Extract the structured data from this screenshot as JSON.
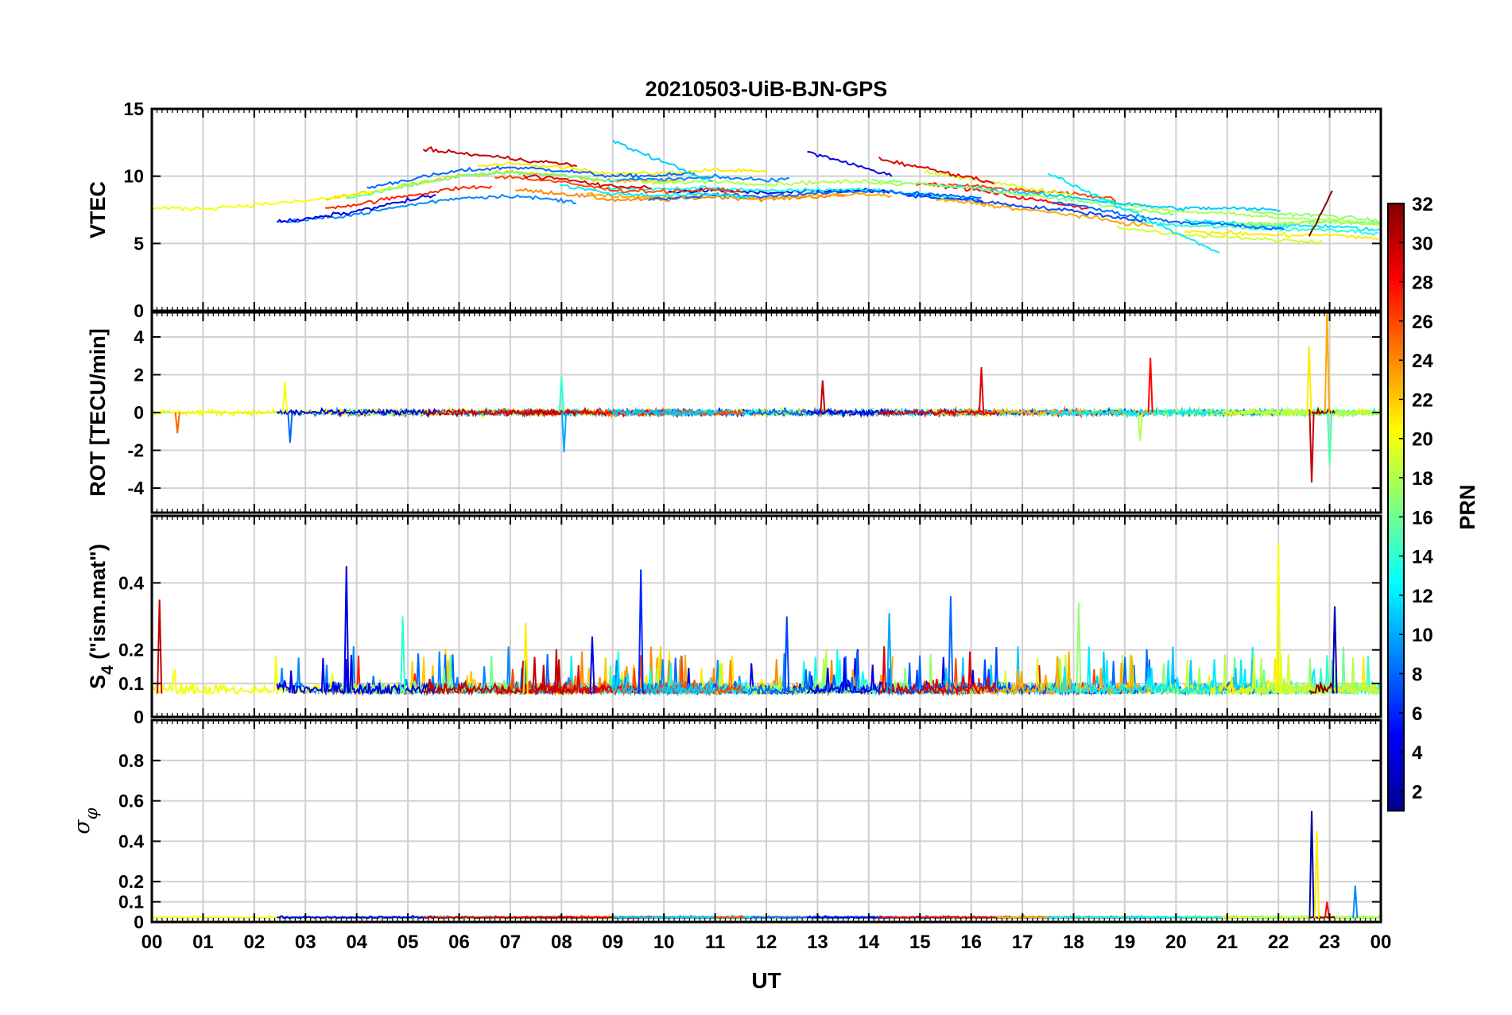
{
  "title": "20210503-UiB-BJN-GPS",
  "chart_data": [
    {
      "type": "line",
      "panel": "vtec",
      "ylabel": "VTEC",
      "ylim": [
        0,
        15
      ],
      "yticks": [
        0,
        5,
        10,
        15
      ],
      "ytick_labels": [
        "0",
        "5",
        "10",
        "15"
      ],
      "grid": true,
      "trend_by_hour": [
        {
          "x": 0,
          "y": 7.2
        },
        {
          "x": 1,
          "y": 7.2
        },
        {
          "x": 2,
          "y": 7.5
        },
        {
          "x": 3,
          "y": 7.8
        },
        {
          "x": 4,
          "y": 8.3
        },
        {
          "x": 5,
          "y": 9.0
        },
        {
          "x": 6,
          "y": 9.6
        },
        {
          "x": 7,
          "y": 9.8
        },
        {
          "x": 8,
          "y": 9.5
        },
        {
          "x": 9,
          "y": 9.0
        },
        {
          "x": 10,
          "y": 9.0
        },
        {
          "x": 11,
          "y": 9.2
        },
        {
          "x": 12,
          "y": 9.0
        },
        {
          "x": 13,
          "y": 9.2
        },
        {
          "x": 14,
          "y": 9.3
        },
        {
          "x": 15,
          "y": 9.0
        },
        {
          "x": 16,
          "y": 8.7
        },
        {
          "x": 17,
          "y": 8.2
        },
        {
          "x": 18,
          "y": 7.8
        },
        {
          "x": 19,
          "y": 7.2
        },
        {
          "x": 20,
          "y": 6.8
        },
        {
          "x": 21,
          "y": 6.7
        },
        {
          "x": 22,
          "y": 6.5
        },
        {
          "x": 23,
          "y": 6.5
        },
        {
          "x": 24,
          "y": 6.2
        }
      ],
      "notable_arcs": [
        {
          "start": 5.3,
          "end": 8.3,
          "y_start": 12.0,
          "y_end": 10.8
        },
        {
          "start": 9.0,
          "end": 11.0,
          "y_start": 12.6,
          "y_end": 9.5
        },
        {
          "start": 12.8,
          "end": 14.5,
          "y_start": 11.8,
          "y_end": 10.0
        },
        {
          "start": 14.2,
          "end": 16.5,
          "y_start": 11.3,
          "y_end": 9.5
        },
        {
          "start": 17.5,
          "end": 20.9,
          "y_start": 10.2,
          "y_end": 4.2
        },
        {
          "start": 22.6,
          "end": 23.1,
          "y_start": 5.5,
          "y_end": 9.3
        }
      ]
    },
    {
      "type": "line",
      "panel": "rot",
      "ylabel": "ROT [TECU/min]",
      "ylim": [
        -5.3,
        5.3
      ],
      "yticks": [
        -4,
        -2,
        0,
        2,
        4
      ],
      "ytick_labels": [
        "-4",
        "-2",
        "0",
        "2",
        "4"
      ],
      "grid": true,
      "baseline": 0,
      "notable_spikes": [
        {
          "x": 0.5,
          "y": -1.1
        },
        {
          "x": 2.6,
          "y": 1.6
        },
        {
          "x": 2.7,
          "y": -1.6
        },
        {
          "x": 8.0,
          "y": 1.9
        },
        {
          "x": 8.05,
          "y": -2.1
        },
        {
          "x": 13.1,
          "y": 1.7
        },
        {
          "x": 16.2,
          "y": 2.4
        },
        {
          "x": 19.5,
          "y": 2.9
        },
        {
          "x": 19.3,
          "y": -1.5
        },
        {
          "x": 22.6,
          "y": 3.5
        },
        {
          "x": 22.65,
          "y": -3.7
        },
        {
          "x": 22.95,
          "y": 5.3
        },
        {
          "x": 23.0,
          "y": -2.8
        }
      ]
    },
    {
      "type": "line",
      "panel": "s4",
      "ylabel": "S",
      "ylabel_subscript": "4",
      "ylabel_suffix": " (\"ism.mat\")",
      "ylim": [
        0,
        0.6
      ],
      "yticks": [
        0,
        0.1,
        0.2,
        0.4
      ],
      "ytick_labels": [
        "0",
        "0.1",
        "0.2",
        "0.4"
      ],
      "grid": true,
      "baseline": 0.07,
      "notable_spikes": [
        {
          "x": 0.15,
          "y": 0.35
        },
        {
          "x": 3.8,
          "y": 0.45
        },
        {
          "x": 4.9,
          "y": 0.3
        },
        {
          "x": 7.3,
          "y": 0.28
        },
        {
          "x": 8.6,
          "y": 0.24
        },
        {
          "x": 9.55,
          "y": 0.44
        },
        {
          "x": 12.4,
          "y": 0.3
        },
        {
          "x": 14.4,
          "y": 0.31
        },
        {
          "x": 15.6,
          "y": 0.36
        },
        {
          "x": 18.1,
          "y": 0.34
        },
        {
          "x": 22.0,
          "y": 0.52
        },
        {
          "x": 23.1,
          "y": 0.33
        }
      ]
    },
    {
      "type": "line",
      "panel": "sigma_phi",
      "ylabel": "σ",
      "ylabel_subscript": "φ",
      "ylim": [
        0,
        1
      ],
      "yticks": [
        0,
        0.1,
        0.2,
        0.4,
        0.6,
        0.8
      ],
      "ytick_labels": [
        "0",
        "0.1",
        "0.2",
        "0.4",
        "0.6",
        "0.8"
      ],
      "grid": true,
      "baseline": 0.02,
      "notable_spikes": [
        {
          "x": 22.65,
          "y": 0.55
        },
        {
          "x": 22.75,
          "y": 0.45
        },
        {
          "x": 22.95,
          "y": 0.1
        },
        {
          "x": 23.5,
          "y": 0.18
        }
      ]
    }
  ],
  "x_axis": {
    "label": "UT",
    "range_hours": [
      0,
      24
    ],
    "tick_labels": [
      "00",
      "01",
      "02",
      "03",
      "04",
      "05",
      "06",
      "07",
      "08",
      "09",
      "10",
      "11",
      "12",
      "13",
      "14",
      "15",
      "16",
      "17",
      "18",
      "19",
      "20",
      "21",
      "22",
      "23",
      "00"
    ]
  },
  "colorbar": {
    "label": "PRN",
    "range": [
      1,
      32
    ],
    "tick_values": [
      2,
      4,
      6,
      8,
      10,
      12,
      14,
      16,
      18,
      20,
      22,
      24,
      26,
      28,
      30,
      32
    ],
    "tick_labels": [
      "2",
      "4",
      "6",
      "8",
      "10",
      "12",
      "14",
      "16",
      "18",
      "20",
      "22",
      "24",
      "26",
      "28",
      "30",
      "32"
    ],
    "colormap": "jet",
    "stops": [
      "#00008f",
      "#0000ff",
      "#0080ff",
      "#00ffff",
      "#80ff80",
      "#ffff00",
      "#ff8000",
      "#ff0000",
      "#800000"
    ]
  }
}
